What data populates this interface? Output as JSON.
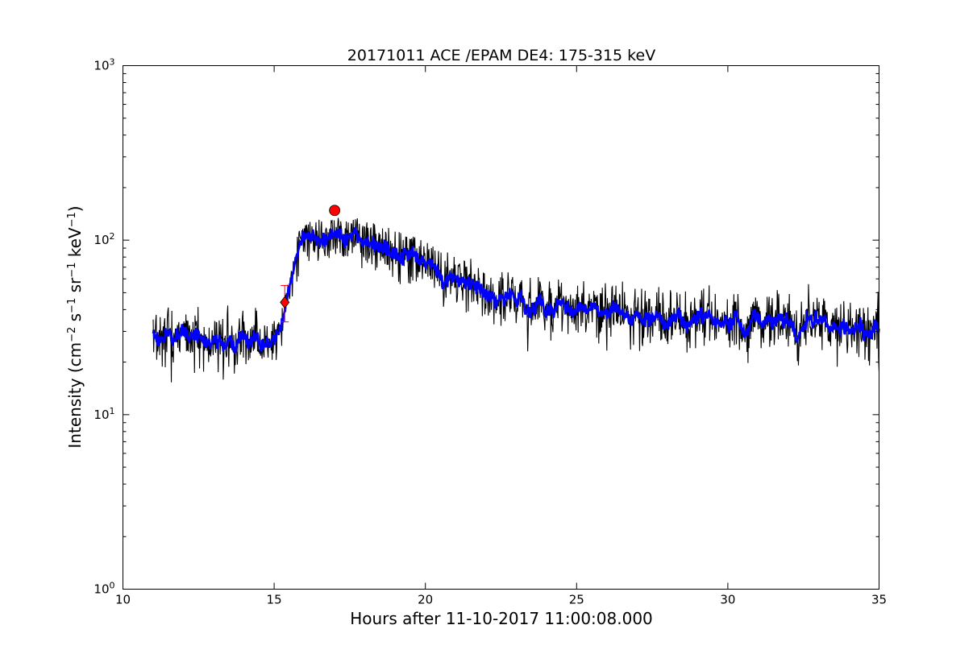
{
  "chart_data": {
    "type": "line",
    "title": "20171011 ACE /EPAM DE4: 175-315 keV",
    "xlabel": "Hours after 11-10-2017 11:00:08.000",
    "ylabel_main": "Intensity (cm",
    "ylabel_parts": [
      {
        "text": "Intensity (cm",
        "sup": false
      },
      {
        "text": "−2",
        "sup": true
      },
      {
        "text": " s",
        "sup": false
      },
      {
        "text": "−1",
        "sup": true
      },
      {
        "text": " sr",
        "sup": false
      },
      {
        "text": "−1",
        "sup": true
      },
      {
        "text": " keV",
        "sup": false
      },
      {
        "text": "−1",
        "sup": true
      },
      {
        "text": ")",
        "sup": false
      }
    ],
    "xlim": [
      10,
      35
    ],
    "ylim": [
      1,
      1000
    ],
    "yscale": "log",
    "grid": false,
    "legend": "none",
    "x_ticks": [
      10,
      15,
      20,
      25,
      30,
      35
    ],
    "x_tick_labels": [
      "10",
      "15",
      "20",
      "25",
      "30",
      "35"
    ],
    "y_ticks": [
      {
        "value": 1,
        "base": "10",
        "exp": "0"
      },
      {
        "value": 10,
        "base": "10",
        "exp": "1"
      },
      {
        "value": 100,
        "base": "10",
        "exp": "2"
      },
      {
        "value": 1000,
        "base": "10",
        "exp": "3"
      }
    ],
    "series": [
      {
        "color": "#000000",
        "style": "raw",
        "x_start": 11.0,
        "x_end": 35.0,
        "envelope": {
          "x": [
            11.0,
            12.0,
            13.0,
            14.0,
            15.0,
            15.3,
            15.5,
            15.7,
            16.0,
            16.5,
            17.0,
            17.5,
            18.0,
            19.0,
            20.0,
            21.0,
            22.0,
            23.0,
            24.0,
            25.0,
            26.0,
            27.0,
            28.0,
            30.0,
            32.0,
            34.0,
            35.0
          ],
          "median": [
            27,
            27,
            26,
            26,
            27,
            34,
            52,
            80,
            95,
            100,
            105,
            103,
            98,
            86,
            72,
            58,
            50,
            45,
            42,
            40,
            38,
            36,
            35,
            34,
            33,
            32,
            32
          ],
          "min": [
            10.5,
            8.5,
            8.5,
            9,
            13,
            25,
            40,
            55,
            70,
            75,
            80,
            72,
            65,
            58,
            45,
            33,
            26,
            22,
            19,
            17,
            17,
            16,
            13,
            14,
            14,
            13,
            13
          ],
          "max": [
            55,
            45,
            45,
            42,
            45,
            55,
            75,
            105,
            125,
            135,
            135,
            140,
            130,
            115,
            100,
            85,
            75,
            68,
            60,
            65,
            65,
            60,
            58,
            60,
            58,
            60,
            60
          ]
        }
      },
      {
        "color": "#0000ff",
        "style": "smoothed",
        "x_start": 11.0,
        "x_end": 35.0
      }
    ],
    "markers": [
      {
        "shape": "circle",
        "x": 17.0,
        "y": 148,
        "color": "#ff0000"
      },
      {
        "shape": "diamond",
        "x": 15.35,
        "y": 44,
        "color": "#ff0000"
      }
    ],
    "error_bars": [
      {
        "x": 15.35,
        "ylow": 34,
        "yhigh": 55,
        "color": "#ff0000"
      }
    ]
  }
}
